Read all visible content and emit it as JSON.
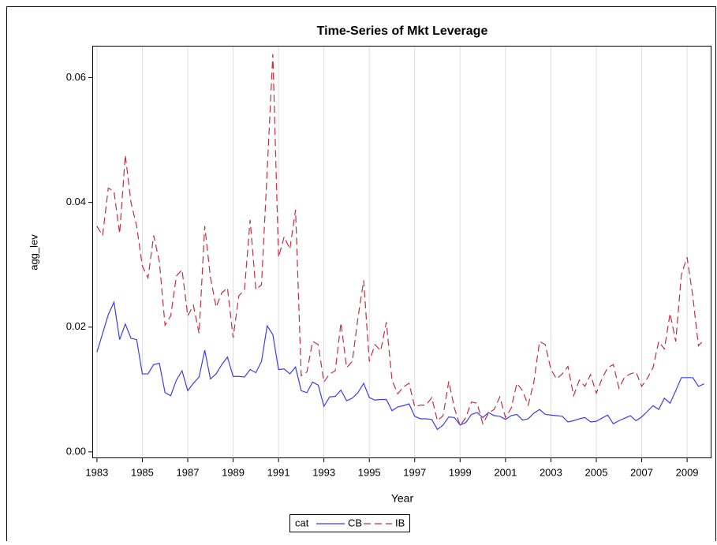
{
  "chart_data": {
    "type": "line",
    "title": "Time-Series of Mkt Leverage",
    "x_label": "Year",
    "y_label": "agg_lev",
    "legend_title": "cat",
    "x": [
      1983,
      1983.25,
      1983.5,
      1983.75,
      1984,
      1984.25,
      1984.5,
      1984.75,
      1985,
      1985.25,
      1985.5,
      1985.75,
      1986,
      1986.25,
      1986.5,
      1986.75,
      1987,
      1987.25,
      1987.5,
      1987.75,
      1988,
      1988.25,
      1988.5,
      1988.75,
      1989,
      1989.25,
      1989.5,
      1989.75,
      1990,
      1990.25,
      1990.5,
      1990.75,
      1991,
      1991.25,
      1991.5,
      1991.75,
      1992,
      1992.25,
      1992.5,
      1992.75,
      1993,
      1993.25,
      1993.5,
      1993.75,
      1994,
      1994.25,
      1994.5,
      1994.75,
      1995,
      1995.25,
      1995.5,
      1995.75,
      1996,
      1996.25,
      1996.5,
      1996.75,
      1997,
      1997.25,
      1997.5,
      1997.75,
      1998,
      1998.25,
      1998.5,
      1998.75,
      1999,
      1999.25,
      1999.5,
      1999.75,
      2000,
      2000.25,
      2000.5,
      2000.75,
      2001,
      2001.25,
      2001.5,
      2001.75,
      2002,
      2002.25,
      2002.5,
      2002.75,
      2003,
      2003.25,
      2003.5,
      2003.75,
      2004,
      2004.25,
      2004.5,
      2004.75,
      2005,
      2005.25,
      2005.5,
      2005.75,
      2006,
      2006.25,
      2006.5,
      2006.75,
      2007,
      2007.25,
      2007.5,
      2007.75,
      2008,
      2008.25,
      2008.5,
      2008.75,
      2009,
      2009.25,
      2009.5,
      2009.75
    ],
    "series": [
      {
        "name": "CB",
        "color": "#3c3cf0",
        "line_style": "solid",
        "values": [
          0.016,
          0.019,
          0.022,
          0.024,
          0.018,
          0.0205,
          0.0182,
          0.018,
          0.0125,
          0.0125,
          0.014,
          0.0142,
          0.0095,
          0.009,
          0.0115,
          0.013,
          0.0098,
          0.011,
          0.012,
          0.0163,
          0.0117,
          0.0125,
          0.014,
          0.0152,
          0.0121,
          0.0121,
          0.012,
          0.0132,
          0.0127,
          0.0145,
          0.0202,
          0.0188,
          0.0132,
          0.0133,
          0.0125,
          0.0136,
          0.0098,
          0.0095,
          0.0112,
          0.0107,
          0.0073,
          0.0088,
          0.0089,
          0.0099,
          0.0082,
          0.0086,
          0.0095,
          0.011,
          0.0087,
          0.0083,
          0.0084,
          0.0084,
          0.0066,
          0.0072,
          0.0074,
          0.0077,
          0.0057,
          0.0053,
          0.0053,
          0.0052,
          0.0036,
          0.0043,
          0.0056,
          0.0055,
          0.0043,
          0.0047,
          0.006,
          0.0063,
          0.0055,
          0.0063,
          0.0058,
          0.0057,
          0.0052,
          0.0058,
          0.006,
          0.0051,
          0.0053,
          0.0062,
          0.0068,
          0.006,
          0.0059,
          0.0058,
          0.0057,
          0.0048,
          0.005,
          0.0053,
          0.0055,
          0.0048,
          0.0049,
          0.0054,
          0.0059,
          0.0045,
          0.005,
          0.0054,
          0.0058,
          0.005,
          0.0056,
          0.0065,
          0.0074,
          0.0068,
          0.0086,
          0.0078,
          0.0098,
          0.0119,
          0.0119,
          0.0119,
          0.0105,
          0.0109
        ]
      },
      {
        "name": "IB",
        "color": "#c0303f",
        "line_style": "dashed",
        "values": [
          0.0362,
          0.0347,
          0.0423,
          0.0418,
          0.035,
          0.0476,
          0.04,
          0.0362,
          0.0298,
          0.0279,
          0.0347,
          0.0305,
          0.0203,
          0.0218,
          0.0282,
          0.0292,
          0.0218,
          0.0235,
          0.019,
          0.0362,
          0.028,
          0.0232,
          0.0255,
          0.0263,
          0.0183,
          0.025,
          0.026,
          0.0372,
          0.026,
          0.0268,
          0.045,
          0.0638,
          0.0312,
          0.0345,
          0.0325,
          0.0388,
          0.0122,
          0.0128,
          0.0177,
          0.0172,
          0.0112,
          0.0125,
          0.013,
          0.0207,
          0.0135,
          0.0145,
          0.0215,
          0.0275,
          0.0145,
          0.0172,
          0.0162,
          0.0208,
          0.0115,
          0.0093,
          0.0104,
          0.011,
          0.0072,
          0.0075,
          0.0075,
          0.0087,
          0.005,
          0.0058,
          0.0113,
          0.007,
          0.0042,
          0.0055,
          0.008,
          0.0078,
          0.0045,
          0.0062,
          0.0068,
          0.0088,
          0.0055,
          0.007,
          0.011,
          0.0098,
          0.0075,
          0.0112,
          0.0177,
          0.0172,
          0.0132,
          0.0117,
          0.0125,
          0.0137,
          0.009,
          0.0115,
          0.0105,
          0.0124,
          0.0094,
          0.0117,
          0.0135,
          0.014,
          0.0102,
          0.012,
          0.0125,
          0.0128,
          0.0105,
          0.0118,
          0.0135,
          0.0177,
          0.0165,
          0.0222,
          0.0177,
          0.0285,
          0.0312,
          0.025,
          0.017,
          0.018
        ]
      }
    ],
    "xlim": [
      1982.83,
      2010.04
    ],
    "xticks": [
      1983,
      1985,
      1987,
      1989,
      1991,
      1993,
      1995,
      1997,
      1999,
      2001,
      2003,
      2005,
      2007,
      2009
    ],
    "ylim": [
      -0.0009,
      0.065
    ],
    "yticks": [
      {
        "value": 0,
        "label": "0.00"
      },
      0.02,
      0.04,
      0.06
    ],
    "grid": "x"
  }
}
